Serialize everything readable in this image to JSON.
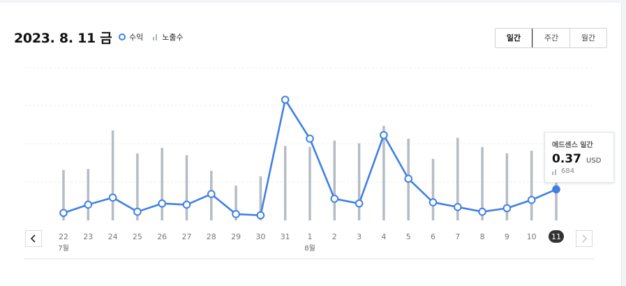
{
  "header": {
    "date_title": "2023. 8. 11 금",
    "legend": {
      "revenue": "수익",
      "impressions": "노출수"
    },
    "tabs": [
      {
        "label": "일간",
        "active": true
      },
      {
        "label": "주간",
        "active": false
      },
      {
        "label": "월간",
        "active": false
      }
    ]
  },
  "tooltip": {
    "title": "애드센스 일간",
    "value": "0.37",
    "unit": "USD",
    "impressions": "684"
  },
  "colors": {
    "line": "#3f7fe5",
    "bar": "#b5bcc5",
    "selected_badge": "#333333"
  },
  "chart_data": {
    "type": "line",
    "x": [
      "22",
      "23",
      "24",
      "25",
      "26",
      "27",
      "28",
      "29",
      "30",
      "31",
      "1",
      "2",
      "3",
      "4",
      "5",
      "6",
      "7",
      "8",
      "9",
      "10",
      "11"
    ],
    "month_labels": [
      {
        "at": "22",
        "label": "7월"
      },
      {
        "at": "1",
        "label": "8월"
      }
    ],
    "selected": "11",
    "series": [
      {
        "name": "수익",
        "kind": "line",
        "values": [
          0.04,
          0.11,
          0.17,
          0.05,
          0.12,
          0.11,
          0.2,
          0.03,
          0.02,
          1.0,
          0.67,
          0.16,
          0.12,
          0.7,
          0.33,
          0.13,
          0.09,
          0.05,
          0.08,
          0.15,
          0.24
        ]
      },
      {
        "name": "노출수",
        "kind": "bar",
        "values": [
          0.55,
          0.56,
          0.98,
          0.73,
          0.79,
          0.71,
          0.54,
          0.38,
          0.48,
          0.81,
          0.8,
          0.87,
          0.84,
          1.03,
          0.89,
          0.67,
          0.9,
          0.8,
          0.73,
          0.76,
          0.56
        ]
      }
    ]
  }
}
